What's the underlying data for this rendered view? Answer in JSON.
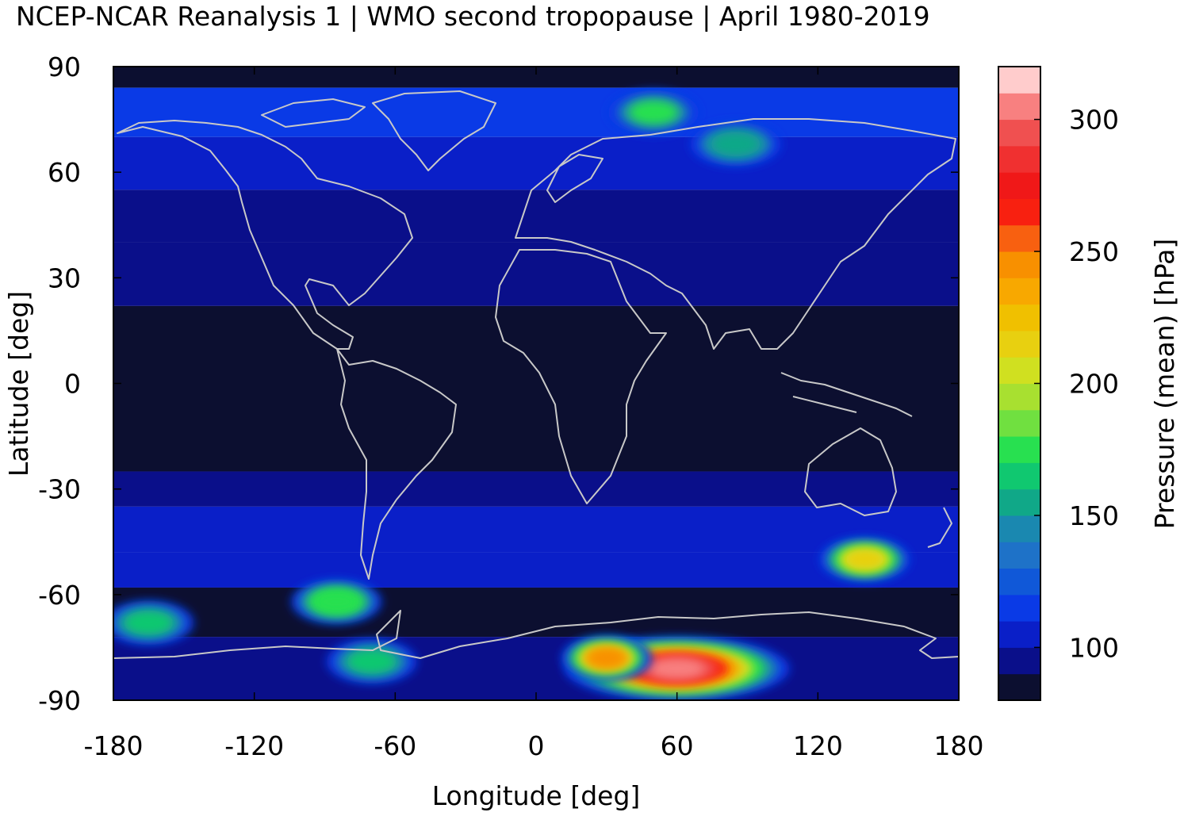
{
  "title": "NCEP-NCAR Reanalysis 1 | WMO second tropopause | April 1980-2019",
  "chart_data": {
    "type": "heatmap",
    "title": "NCEP-NCAR Reanalysis 1 | WMO second tropopause | April 1980-2019",
    "xlabel": "Longitude [deg]",
    "ylabel": "Latitude [deg]",
    "xlim": [
      -180,
      180
    ],
    "ylim": [
      -90,
      90
    ],
    "xticks": [
      "-180",
      "-120",
      "-60",
      "0",
      "60",
      "120",
      "180"
    ],
    "yticks": [
      "90",
      "60",
      "30",
      "0",
      "-30",
      "-60",
      "-90"
    ],
    "colorbar": {
      "label": "Pressure (mean) [hPa]",
      "range": [
        80,
        320
      ],
      "ticks": [
        "100",
        "150",
        "200",
        "250",
        "300"
      ],
      "tick_values": [
        100,
        150,
        200,
        250,
        300
      ],
      "step": 10,
      "colors": [
        "#0c0f30",
        "#0a0f8a",
        "#0a1fc8",
        "#0a3ae6",
        "#1058d8",
        "#1e72c8",
        "#1a88b0",
        "#10a888",
        "#10c870",
        "#28e050",
        "#70e040",
        "#a8e030",
        "#d0e020",
        "#e8d010",
        "#f0c000",
        "#f8a800",
        "#f89000",
        "#f86010",
        "#f82010",
        "#f01818",
        "#f03030",
        "#f05050",
        "#f88080",
        "#ffcccc"
      ]
    },
    "zonal_pattern": [
      {
        "lat": [
          84,
          90
        ],
        "mean_hPa": 85
      },
      {
        "lat": [
          70,
          84
        ],
        "mean_hPa": 110
      },
      {
        "lat": [
          55,
          70
        ],
        "mean_hPa": 105
      },
      {
        "lat": [
          40,
          55
        ],
        "mean_hPa": 98
      },
      {
        "lat": [
          22,
          40
        ],
        "mean_hPa": 92
      },
      {
        "lat": [
          -25,
          22
        ],
        "mean_hPa": 82
      },
      {
        "lat": [
          -35,
          -25
        ],
        "mean_hPa": 92
      },
      {
        "lat": [
          -48,
          -35
        ],
        "mean_hPa": 105
      },
      {
        "lat": [
          -58,
          -48
        ],
        "mean_hPa": 100
      },
      {
        "lat": [
          -72,
          -58
        ],
        "mean_hPa": 88
      },
      {
        "lat": [
          -90,
          -72
        ],
        "mean_hPa": 95
      }
    ],
    "features": [
      {
        "lon": 50,
        "lat": 77,
        "mean_hPa": 170
      },
      {
        "lon": 85,
        "lat": 68,
        "mean_hPa": 150
      },
      {
        "lon": 60,
        "lat": -81,
        "mean_hPa": 300
      },
      {
        "lon": 30,
        "lat": -78,
        "mean_hPa": 240
      },
      {
        "lon": -70,
        "lat": -79,
        "mean_hPa": 160
      },
      {
        "lon": -165,
        "lat": -68,
        "mean_hPa": 165
      },
      {
        "lon": -85,
        "lat": -62,
        "mean_hPa": 175
      },
      {
        "lon": 140,
        "lat": -50,
        "mean_hPa": 210
      }
    ]
  }
}
